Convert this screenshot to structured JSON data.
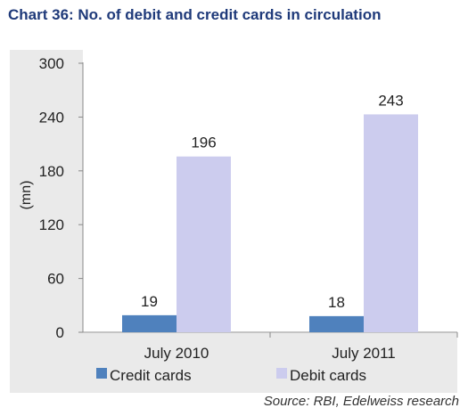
{
  "title": "Chart 36: No. of debit and credit cards in circulation",
  "source": "Source: RBI, Edelweiss research",
  "colors": {
    "credit": "#4f81bd",
    "debit": "#ccccee",
    "title": "#1f3a7a",
    "background": "#eaeaea"
  },
  "chart_data": {
    "type": "bar",
    "categories": [
      "July 2010",
      "July 2011"
    ],
    "series": [
      {
        "name": "Credit cards",
        "values": [
          19,
          18
        ]
      },
      {
        "name": "Debit cards",
        "values": [
          196,
          243
        ]
      }
    ],
    "ylabel": "(mn)",
    "ylim": [
      0,
      300
    ],
    "yticks": [
      "0",
      "60",
      "120",
      "180",
      "240",
      "300"
    ],
    "data_labels": [
      [
        "19",
        "18"
      ],
      [
        "196",
        "243"
      ]
    ],
    "legend": "bottom",
    "grid": false
  }
}
